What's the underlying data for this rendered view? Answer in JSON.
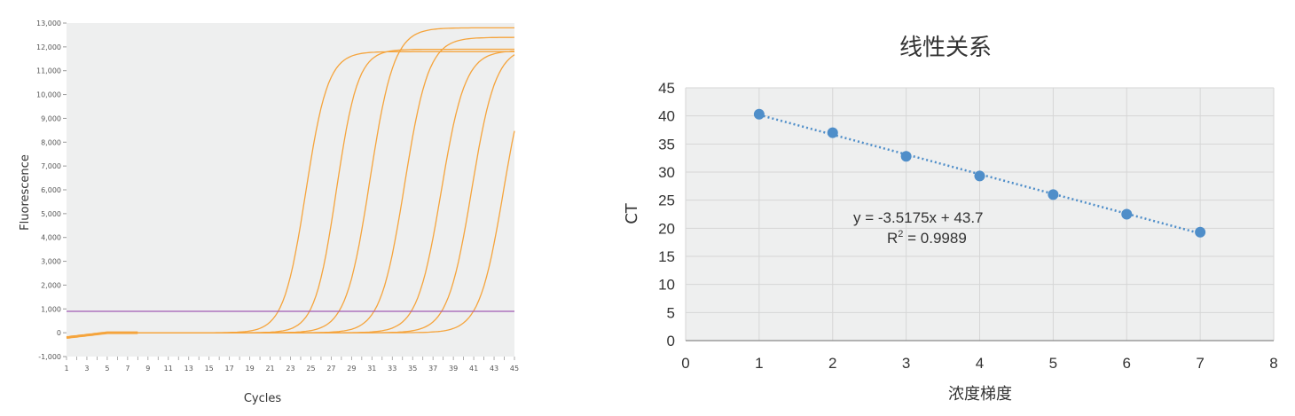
{
  "colors": {
    "curve": "#f5a43c",
    "threshold": "#a05ab4",
    "point": "#4f8ec9",
    "plot_bg": "#eeefef",
    "grid": "#d6d6d6"
  },
  "chart_data": [
    {
      "type": "line",
      "title": "",
      "xlabel": "Cycles",
      "ylabel": "Fluorescence",
      "xlim": [
        1,
        45
      ],
      "ylim": [
        -1000,
        13000
      ],
      "x_ticks": [
        1,
        3,
        5,
        7,
        9,
        11,
        13,
        15,
        17,
        19,
        21,
        23,
        25,
        27,
        29,
        31,
        33,
        35,
        37,
        39,
        41,
        43,
        45
      ],
      "y_ticks": [
        -1000,
        0,
        1000,
        2000,
        3000,
        4000,
        5000,
        6000,
        7000,
        8000,
        9000,
        10000,
        11000,
        12000,
        13000
      ],
      "y_tick_labels": [
        "-1,000",
        "0",
        "1,000",
        "2,000",
        "3,000",
        "4,000",
        "5,000",
        "6,000",
        "7,000",
        "8,000",
        "9,000",
        "10,000",
        "11,000",
        "12,000",
        "13,000"
      ],
      "threshold": 900,
      "grid": false,
      "curves": [
        {
          "plateau": 11800,
          "midpoint_cycle": 24.5,
          "slope": 0.92
        },
        {
          "plateau": 11900,
          "midpoint_cycle": 27.5,
          "slope": 0.95
        },
        {
          "plateau": 12800,
          "midpoint_cycle": 30.8,
          "slope": 0.85
        },
        {
          "plateau": 12400,
          "midpoint_cycle": 34.2,
          "slope": 0.85
        },
        {
          "plateau": 11850,
          "midpoint_cycle": 37.8,
          "slope": 0.85
        },
        {
          "plateau": 12000,
          "midpoint_cycle": 40.8,
          "slope": 0.85
        },
        {
          "plateau": 11800,
          "midpoint_cycle": 43.9,
          "slope": 0.85
        }
      ]
    },
    {
      "type": "scatter",
      "title": "线性关系",
      "xlabel": "浓度梯度",
      "ylabel": "CT",
      "xlim": [
        0,
        8
      ],
      "ylim": [
        0,
        45
      ],
      "x_ticks": [
        0,
        1,
        2,
        3,
        4,
        5,
        6,
        7,
        8
      ],
      "y_ticks": [
        0,
        5,
        10,
        15,
        20,
        25,
        30,
        35,
        40,
        45
      ],
      "grid": true,
      "points": [
        {
          "x": 1,
          "y": 40.3
        },
        {
          "x": 2,
          "y": 37.0
        },
        {
          "x": 3,
          "y": 32.8
        },
        {
          "x": 4,
          "y": 29.3
        },
        {
          "x": 5,
          "y": 26.0
        },
        {
          "x": 6,
          "y": 22.5
        },
        {
          "x": 7,
          "y": 19.3
        }
      ],
      "trendline": {
        "slope": -3.5175,
        "intercept": 43.7,
        "style": "dotted"
      },
      "equation_label": "y = -3.5175x + 43.7",
      "r2_prefix": "R",
      "r2_sup": "2",
      "r2_value": " = 0.9989"
    }
  ]
}
